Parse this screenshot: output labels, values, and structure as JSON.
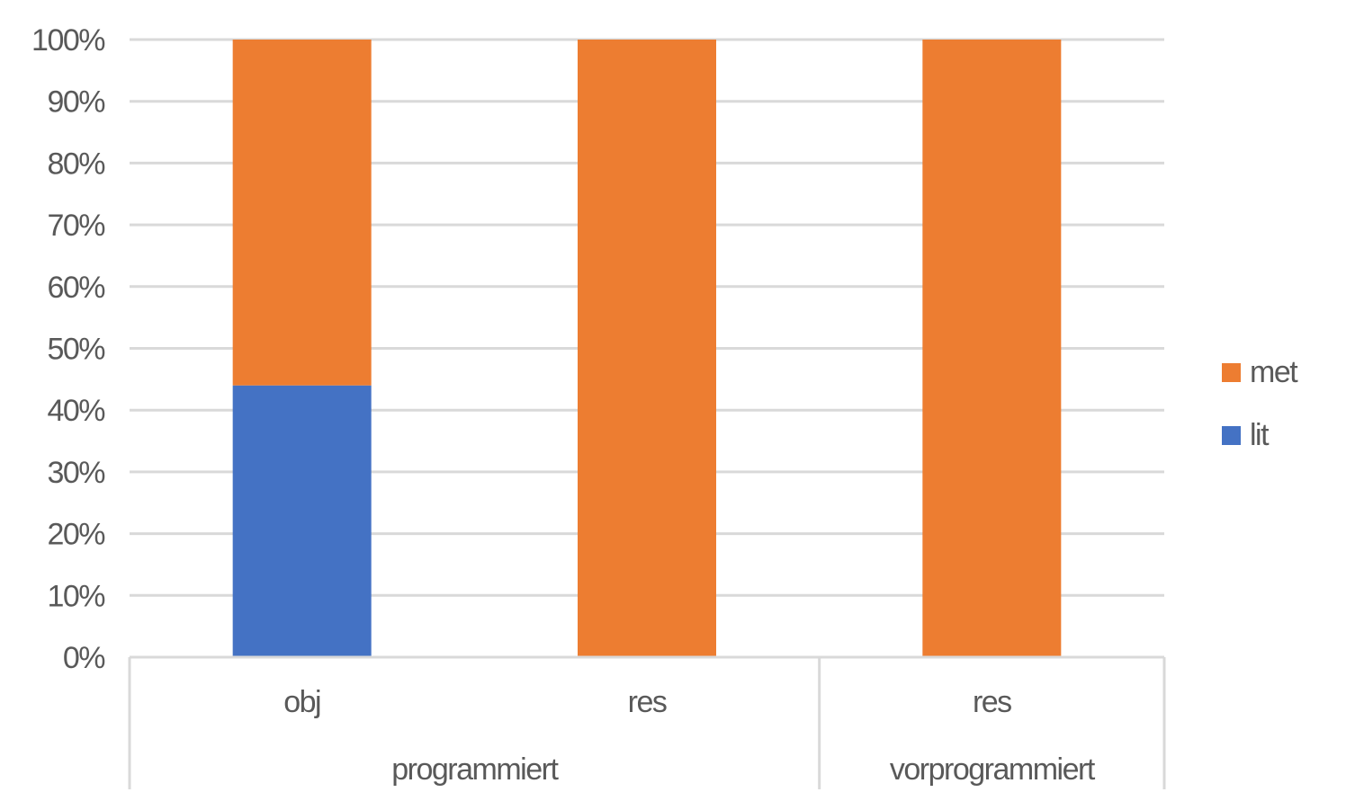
{
  "chart_data": {
    "type": "bar",
    "stacked": true,
    "percent_stacked": true,
    "categories": [
      "obj",
      "res",
      "res"
    ],
    "category_groups": [
      {
        "label": "programmiert",
        "categories": [
          0,
          1
        ]
      },
      {
        "label": "vorprogrammiert",
        "categories": [
          2
        ]
      }
    ],
    "series": [
      {
        "name": "lit",
        "color": "#4472c4",
        "values": [
          0.44,
          0,
          0
        ]
      },
      {
        "name": "met",
        "color": "#ed7d31",
        "values": [
          0.56,
          1.0,
          1.0
        ]
      }
    ],
    "y_ticks": [
      "0%",
      "10%",
      "20%",
      "30%",
      "40%",
      "50%",
      "60%",
      "70%",
      "80%",
      "90%",
      "100%"
    ],
    "ylim": [
      0,
      1
    ],
    "grid": true,
    "legend_position": "right",
    "legend_order": [
      "met",
      "lit"
    ],
    "colors": {
      "grid": "#d9d9d9",
      "axis": "#d9d9d9",
      "text": "#595959"
    }
  }
}
